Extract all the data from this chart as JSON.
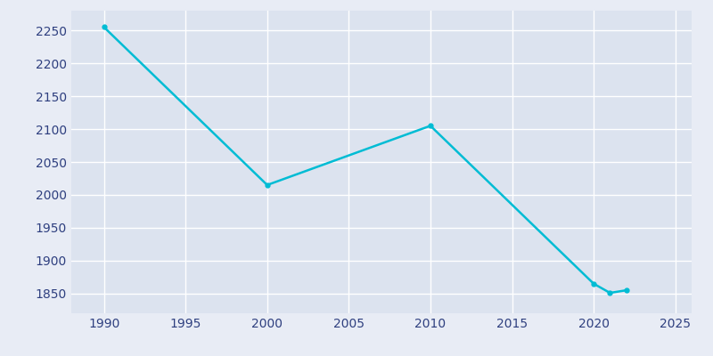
{
  "years": [
    1990,
    2000,
    2010,
    2020,
    2021,
    2022
  ],
  "population": [
    2255,
    2015,
    2105,
    1865,
    1851,
    1855
  ],
  "line_color": "#00bcd4",
  "marker_color": "#00bcd4",
  "fig_bg_color": "#e8ecf5",
  "plot_bg_color": "#dce3ef",
  "grid_color": "#ffffff",
  "tick_color": "#2e3f7f",
  "xlim": [
    1988,
    2026
  ],
  "ylim": [
    1820,
    2280
  ],
  "xticks": [
    1990,
    1995,
    2000,
    2005,
    2010,
    2015,
    2020,
    2025
  ],
  "yticks": [
    1850,
    1900,
    1950,
    2000,
    2050,
    2100,
    2150,
    2200,
    2250
  ]
}
